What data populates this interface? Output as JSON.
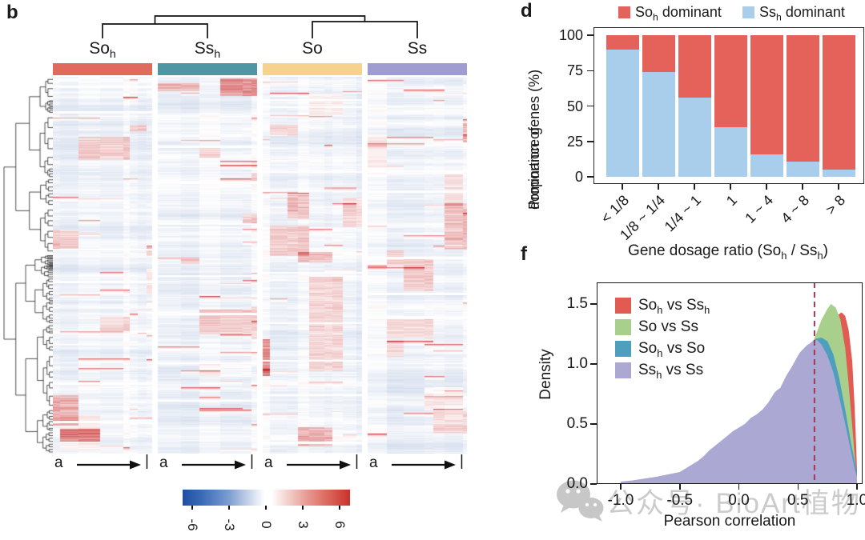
{
  "panels": {
    "b": {
      "label": "b",
      "groups": [
        {
          "label": "So{h}",
          "color": "#E16A5E"
        },
        {
          "label": "Ss{h}",
          "color": "#4F96A5"
        },
        {
          "label": "So",
          "color": "#F6D28F"
        },
        {
          "label": "Ss",
          "color": "#9E9CD0"
        }
      ],
      "row_arrow_label": "a",
      "row_arrow_end": "|",
      "colorbar": {
        "min": -6,
        "max": 6,
        "ticks": [
          "-6",
          "-3",
          "0",
          "3",
          "6"
        ],
        "negative_color": "#1F4FA3",
        "positive_color": "#C8312B"
      }
    },
    "d": {
      "label": "d",
      "legend": [
        {
          "label": "So{h} dominant",
          "color": "#E5625B"
        },
        {
          "label": "Ss{h} dominant",
          "color": "#A9CEEC"
        }
      ],
      "ylabel_line1": "Proportion of",
      "ylabel_line2": "dominance genes (%)",
      "xlabel": "Gene dosage ratio (So{h} / Ss{h})",
      "y_ticks": [
        "0",
        "25",
        "50",
        "75",
        "100"
      ]
    },
    "f": {
      "label": "f",
      "legend": [
        {
          "label": "So{h} vs Ss{h}",
          "color": "#E25B52"
        },
        {
          "label": "So vs Ss",
          "color": "#A9CF8C"
        },
        {
          "label": "So{h} vs So",
          "color": "#4E9FBE"
        },
        {
          "label": "Ss{h} vs Ss",
          "color": "#ABA8D4"
        }
      ],
      "ylabel": "Density",
      "xlabel": "Pearson correlation",
      "y_ticks": [
        "0.0",
        "0.5",
        "1.0",
        "1.5"
      ],
      "x_ticks": [
        "-1.0",
        "-0.5",
        "0.0",
        "0.5",
        "1.0"
      ]
    }
  },
  "watermark": {
    "icon": "wechat-icon",
    "text": "公众号· BioArt植物"
  },
  "chart_data": [
    {
      "type": "heatmap",
      "panel": "b",
      "columns": [
        "Soh",
        "Ssh",
        "So",
        "Ss"
      ],
      "column_colors": [
        "#E16A5E",
        "#4F96A5",
        "#F6D28F",
        "#9E9CD0"
      ],
      "column_dendrogram": "((Soh,Ssh),(So,Ss))",
      "row_dendrogram": true,
      "row_axis_arrow_label": "a",
      "value_range": [
        -6,
        6
      ],
      "colorbar_ticks": [
        -6,
        -3,
        0,
        3,
        6
      ],
      "colormap": {
        "low": "#1F4FA3",
        "mid": "#FFFFFF",
        "high": "#C8312B"
      }
    },
    {
      "type": "bar",
      "panel": "d",
      "stacked": true,
      "categories": [
        "< 1/8",
        "1/8 ~ 1/4",
        "1/4 ~ 1",
        "1",
        "1 ~ 4",
        "4 ~ 8",
        "> 8"
      ],
      "series": [
        {
          "name": "Ssh dominant",
          "color": "#A9CEEC",
          "values": [
            90,
            74,
            56,
            35,
            16,
            11,
            5
          ]
        },
        {
          "name": "Soh dominant",
          "color": "#E5625B",
          "values": [
            10,
            26,
            44,
            65,
            84,
            89,
            95
          ]
        }
      ],
      "title": "",
      "xlabel": "Gene dosage ratio (Soh / Ssh)",
      "ylabel": "Proportion of dominance genes (%)",
      "ylim": [
        0,
        100
      ],
      "yticks": [
        0,
        25,
        50,
        75,
        100
      ],
      "legend_position": "top"
    },
    {
      "type": "area",
      "panel": "f",
      "xlabel": "Pearson correlation",
      "ylabel": "Density",
      "xlim": [
        -1.2,
        1.05
      ],
      "ylim": [
        0,
        1.7
      ],
      "xticks": [
        -1.0,
        -0.5,
        0.0,
        0.5,
        1.0
      ],
      "yticks": [
        0.0,
        0.5,
        1.0,
        1.5
      ],
      "vline": {
        "x": 0.64,
        "style": "dashed",
        "color": "#A23B52"
      },
      "legend_position": "top-left-inside",
      "series": [
        {
          "name": "Soh vs Ssh",
          "color": "#E25B52",
          "points": [
            [
              -1.0,
              0.01
            ],
            [
              -0.5,
              0.04
            ],
            [
              0.0,
              0.18
            ],
            [
              0.3,
              0.4
            ],
            [
              0.5,
              0.68
            ],
            [
              0.6,
              0.88
            ],
            [
              0.7,
              1.12
            ],
            [
              0.75,
              1.25
            ],
            [
              0.8,
              1.35
            ],
            [
              0.84,
              1.41
            ],
            [
              0.87,
              1.43
            ],
            [
              0.9,
              1.4
            ],
            [
              0.93,
              1.28
            ],
            [
              0.96,
              1.02
            ],
            [
              0.98,
              0.65
            ],
            [
              0.99,
              0.4
            ],
            [
              1.0,
              0.12
            ]
          ]
        },
        {
          "name": "So vs Ss",
          "color": "#A9CF8C",
          "points": [
            [
              -1.0,
              0.01
            ],
            [
              -0.6,
              0.04
            ],
            [
              -0.3,
              0.1
            ],
            [
              0.0,
              0.25
            ],
            [
              0.2,
              0.42
            ],
            [
              0.4,
              0.68
            ],
            [
              0.5,
              0.88
            ],
            [
              0.6,
              1.12
            ],
            [
              0.65,
              1.24
            ],
            [
              0.7,
              1.37
            ],
            [
              0.75,
              1.46
            ],
            [
              0.78,
              1.5
            ],
            [
              0.82,
              1.47
            ],
            [
              0.86,
              1.37
            ],
            [
              0.9,
              1.13
            ],
            [
              0.93,
              0.82
            ],
            [
              0.96,
              0.48
            ],
            [
              0.98,
              0.25
            ],
            [
              1.0,
              0.06
            ]
          ]
        },
        {
          "name": "Soh vs So",
          "color": "#4E9FBE",
          "points": [
            [
              -1.0,
              0.015
            ],
            [
              -0.8,
              0.03
            ],
            [
              -0.6,
              0.06
            ],
            [
              -0.4,
              0.13
            ],
            [
              -0.2,
              0.27
            ],
            [
              0.0,
              0.42
            ],
            [
              0.2,
              0.6
            ],
            [
              0.3,
              0.72
            ],
            [
              0.4,
              0.86
            ],
            [
              0.5,
              1.02
            ],
            [
              0.55,
              1.1
            ],
            [
              0.6,
              1.17
            ],
            [
              0.65,
              1.21
            ],
            [
              0.7,
              1.22
            ],
            [
              0.75,
              1.19
            ],
            [
              0.8,
              1.08
            ],
            [
              0.85,
              0.88
            ],
            [
              0.9,
              0.62
            ],
            [
              0.95,
              0.34
            ],
            [
              1.0,
              0.1
            ]
          ]
        },
        {
          "name": "Ssh vs Ss",
          "color": "#ABA8D4",
          "points": [
            [
              -1.0,
              0.02
            ],
            [
              -0.9,
              0.03
            ],
            [
              -0.8,
              0.045
            ],
            [
              -0.7,
              0.06
            ],
            [
              -0.6,
              0.08
            ],
            [
              -0.5,
              0.1
            ],
            [
              -0.45,
              0.13
            ],
            [
              -0.4,
              0.16
            ],
            [
              -0.35,
              0.19
            ],
            [
              -0.3,
              0.23
            ],
            [
              -0.25,
              0.28
            ],
            [
              -0.2,
              0.32
            ],
            [
              -0.15,
              0.36
            ],
            [
              -0.1,
              0.4
            ],
            [
              -0.05,
              0.44
            ],
            [
              0.0,
              0.47
            ],
            [
              0.05,
              0.5
            ],
            [
              0.1,
              0.55
            ],
            [
              0.15,
              0.58
            ],
            [
              0.2,
              0.62
            ],
            [
              0.25,
              0.68
            ],
            [
              0.3,
              0.76
            ],
            [
              0.32,
              0.78
            ],
            [
              0.35,
              0.8
            ],
            [
              0.4,
              0.9
            ],
            [
              0.45,
              0.98
            ],
            [
              0.5,
              1.07
            ],
            [
              0.52,
              1.1
            ],
            [
              0.55,
              1.13
            ],
            [
              0.58,
              1.16
            ],
            [
              0.6,
              1.17
            ],
            [
              0.63,
              1.19
            ],
            [
              0.66,
              1.2
            ],
            [
              0.7,
              1.16
            ],
            [
              0.75,
              1.07
            ],
            [
              0.8,
              0.93
            ],
            [
              0.85,
              0.72
            ],
            [
              0.9,
              0.5
            ],
            [
              0.95,
              0.27
            ],
            [
              0.98,
              0.13
            ],
            [
              1.0,
              0.06
            ]
          ]
        }
      ]
    }
  ]
}
